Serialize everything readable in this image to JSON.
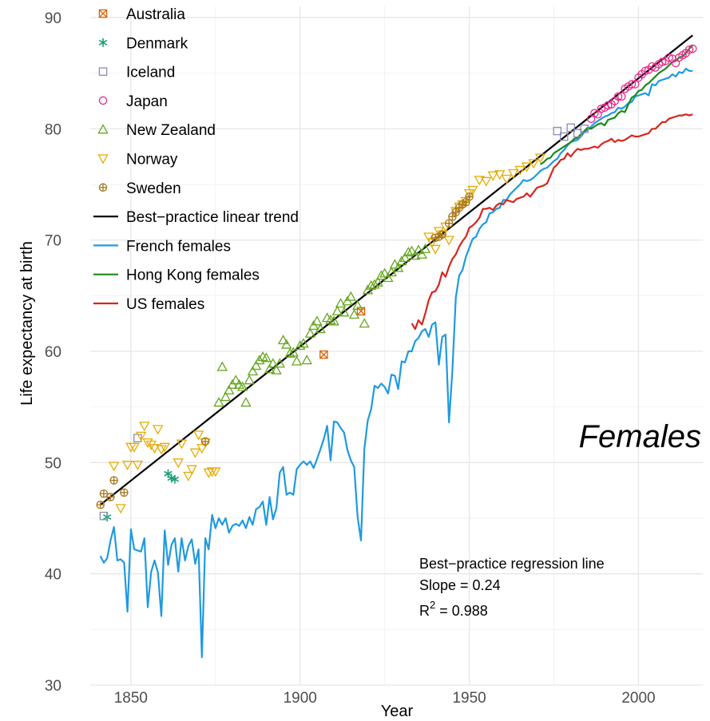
{
  "chart_data": {
    "type": "line",
    "title": "",
    "xlabel": "Year",
    "ylabel": "Life expectancy at birth",
    "xlim": [
      1838,
      2019
    ],
    "ylim": [
      30,
      91
    ],
    "xticks": [
      1850,
      1900,
      1950,
      2000
    ],
    "yticks": [
      30,
      40,
      50,
      60,
      70,
      80,
      90
    ],
    "grid": true,
    "legend_position": "top-left",
    "panel_label": "Females",
    "annotation": {
      "line1": "Best−practice regression line",
      "line2": "Slope = 0.24",
      "line3_prefix": "R",
      "line3_sup": "2",
      "line3_suffix": " = 0.988"
    },
    "legend": [
      {
        "label": "Australia",
        "kind": "marker",
        "marker": "square-x",
        "color": "#d95f02"
      },
      {
        "label": "Denmark",
        "kind": "marker",
        "marker": "asterisk",
        "color": "#1b9e77"
      },
      {
        "label": "Iceland",
        "kind": "marker",
        "marker": "square",
        "color": "#8c8cb3"
      },
      {
        "label": "Japan",
        "kind": "marker",
        "marker": "circle",
        "color": "#e7298a"
      },
      {
        "label": "New Zealand",
        "kind": "marker",
        "marker": "triangle-up",
        "color": "#66a61e"
      },
      {
        "label": "Norway",
        "kind": "marker",
        "marker": "triangle-down",
        "color": "#e6ab02"
      },
      {
        "label": "Sweden",
        "kind": "marker",
        "marker": "circle-plus",
        "color": "#a6761d"
      },
      {
        "label": "Best−practice linear trend",
        "kind": "line",
        "color": "#000000"
      },
      {
        "label": "French females",
        "kind": "line",
        "color": "#1f9ae0"
      },
      {
        "label": "Hong Kong females",
        "kind": "line",
        "color": "#1a8a1a"
      },
      {
        "label": "US females",
        "kind": "line",
        "color": "#d7261e"
      }
    ],
    "trend": {
      "x": [
        1841,
        2016
      ],
      "y": [
        46.2,
        88.4
      ]
    },
    "points": [
      {
        "series": "Australia",
        "x": [
          1907,
          1918
        ],
        "y": [
          59.7,
          63.6
        ]
      },
      {
        "series": "Denmark",
        "x": [
          1843,
          1861,
          1862,
          1863
        ],
        "y": [
          45.1,
          49.0,
          48.6,
          48.5
        ]
      },
      {
        "series": "Iceland",
        "x": [
          1842,
          1852,
          1976,
          1978,
          1980,
          1982,
          1984
        ],
        "y": [
          45.2,
          52.2,
          79.8,
          79.3,
          80.1,
          79.6,
          80.0
        ]
      },
      {
        "series": "Japan",
        "x": [
          1986,
          1987,
          1988,
          1989,
          1990,
          1991,
          1992,
          1993,
          1994,
          1995,
          1996,
          1997,
          1998,
          1999,
          2000,
          2001,
          2002,
          2003,
          2004,
          2005,
          2006,
          2007,
          2008,
          2009,
          2010,
          2011,
          2012,
          2013,
          2014,
          2015,
          2016
        ],
        "y": [
          80.9,
          81.4,
          81.3,
          81.8,
          81.9,
          82.1,
          82.2,
          82.5,
          82.9,
          82.9,
          83.6,
          83.8,
          84.0,
          84.0,
          84.6,
          84.9,
          85.2,
          85.3,
          85.6,
          85.5,
          85.8,
          86.0,
          86.1,
          86.4,
          86.3,
          85.9,
          86.4,
          86.6,
          86.8,
          87.1,
          87.2
        ]
      },
      {
        "series": "New Zealand",
        "x": [
          1876,
          1877,
          1878,
          1879,
          1880,
          1881,
          1882,
          1883,
          1884,
          1885,
          1886,
          1887,
          1888,
          1889,
          1890,
          1891,
          1892,
          1893,
          1894,
          1895,
          1896,
          1897,
          1898,
          1899,
          1900,
          1901,
          1902,
          1903,
          1904,
          1905,
          1906,
          1908,
          1909,
          1910,
          1911,
          1912,
          1913,
          1914,
          1915,
          1916,
          1917,
          1919,
          1920,
          1921,
          1922,
          1923,
          1924,
          1925,
          1926,
          1927,
          1928,
          1929,
          1930,
          1931,
          1932,
          1933,
          1934,
          1935,
          1936,
          1937
        ],
        "y": [
          55.4,
          58.6,
          55.9,
          56.5,
          57.0,
          57.4,
          57.0,
          56.8,
          55.4,
          57.4,
          58.2,
          58.7,
          59.2,
          59.5,
          59.4,
          58.4,
          58.9,
          58.3,
          58.9,
          61.0,
          60.6,
          59.8,
          59.9,
          59.1,
          60.5,
          60.7,
          59.2,
          61.6,
          62.3,
          62.7,
          62.0,
          63.0,
          62.8,
          62.7,
          63.6,
          64.3,
          63.5,
          64.5,
          64.9,
          63.3,
          64.1,
          62.5,
          65.5,
          65.9,
          66.0,
          66.2,
          66.8,
          67.0,
          66.6,
          67.1,
          67.8,
          67.5,
          68.1,
          68.4,
          68.9,
          69.0,
          68.6,
          69.1,
          68.7,
          69.2
        ]
      },
      {
        "series": "Norway",
        "x": [
          1845,
          1847,
          1849,
          1850,
          1851,
          1852,
          1853,
          1854,
          1855,
          1856,
          1857,
          1858,
          1859,
          1860,
          1864,
          1865,
          1867,
          1868,
          1869,
          1870,
          1871,
          1872,
          1873,
          1874,
          1875,
          1938,
          1939,
          1940,
          1941,
          1942,
          1943,
          1944,
          1946,
          1947,
          1948,
          1949,
          1950,
          1951,
          1953,
          1955,
          1957,
          1959,
          1961,
          1963,
          1965,
          1967,
          1969,
          1971
        ],
        "y": [
          49.7,
          45.9,
          49.8,
          51.4,
          51.4,
          49.8,
          52.4,
          53.3,
          51.8,
          51.6,
          51.3,
          53.0,
          51.2,
          51.4,
          50.0,
          51.7,
          48.8,
          49.4,
          50.9,
          52.5,
          51.3,
          51.8,
          49.1,
          49.2,
          49.2,
          70.3,
          69.8,
          69.2,
          70.8,
          70.5,
          71.2,
          70.0,
          72.6,
          73.0,
          73.2,
          73.5,
          74.2,
          74.5,
          75.4,
          75.3,
          75.8,
          75.9,
          75.5,
          76.0,
          76.3,
          76.6,
          76.9,
          77.4
        ]
      },
      {
        "series": "Sweden",
        "x": [
          1841,
          1842,
          1844,
          1845,
          1848,
          1872,
          1940,
          1941,
          1942,
          1944,
          1945,
          1946,
          1947,
          1948,
          1949,
          1950
        ],
        "y": [
          46.2,
          47.2,
          46.9,
          48.4,
          47.3,
          51.9,
          70.2,
          70.3,
          70.5,
          71.5,
          72.1,
          72.5,
          72.9,
          73.2,
          73.4,
          73.9
        ]
      }
    ],
    "series": [
      {
        "name": "French females",
        "x": [
          1841,
          1842,
          1843,
          1844,
          1845,
          1846,
          1847,
          1848,
          1849,
          1850,
          1851,
          1852,
          1853,
          1854,
          1855,
          1856,
          1857,
          1858,
          1859,
          1860,
          1861,
          1862,
          1863,
          1864,
          1865,
          1866,
          1867,
          1868,
          1869,
          1870,
          1871,
          1872,
          1873,
          1874,
          1875,
          1876,
          1877,
          1878,
          1879,
          1880,
          1881,
          1882,
          1883,
          1884,
          1885,
          1886,
          1887,
          1888,
          1889,
          1890,
          1891,
          1892,
          1893,
          1894,
          1895,
          1896,
          1897,
          1898,
          1899,
          1900,
          1901,
          1902,
          1903,
          1904,
          1905,
          1906,
          1907,
          1908,
          1909,
          1910,
          1911,
          1912,
          1913,
          1914,
          1915,
          1916,
          1917,
          1918,
          1919,
          1920,
          1921,
          1922,
          1923,
          1924,
          1925,
          1926,
          1927,
          1928,
          1929,
          1930,
          1931,
          1932,
          1933,
          1934,
          1935,
          1936,
          1937,
          1938,
          1939,
          1940,
          1941,
          1942,
          1943,
          1944,
          1945,
          1946,
          1947,
          1948,
          1949,
          1950,
          1951,
          1952,
          1953,
          1954,
          1955,
          1956,
          1957,
          1958,
          1959,
          1960,
          1961,
          1962,
          1963,
          1964,
          1965,
          1966,
          1967,
          1968,
          1969,
          1970,
          1971,
          1972,
          1973,
          1974,
          1975,
          1976,
          1977,
          1978,
          1979,
          1980,
          1981,
          1982,
          1983,
          1984,
          1985,
          1986,
          1987,
          1988,
          1989,
          1990,
          1991,
          1992,
          1993,
          1994,
          1995,
          1996,
          1997,
          1998,
          1999,
          2000,
          2001,
          2002,
          2003,
          2004,
          2005,
          2006,
          2007,
          2008,
          2009,
          2010,
          2011,
          2012,
          2013,
          2014,
          2015,
          2016
        ],
        "y": [
          41.6,
          41.0,
          41.4,
          43.0,
          44.2,
          41.2,
          41.3,
          41.0,
          36.6,
          44.0,
          42.2,
          42.1,
          42.0,
          43.2,
          37.0,
          40.2,
          41.2,
          40.1,
          36.2,
          43.9,
          40.8,
          42.6,
          43.2,
          40.2,
          43.2,
          41.2,
          42.5,
          43.1,
          40.9,
          42.2,
          32.5,
          43.2,
          42.2,
          45.3,
          44.1,
          45.0,
          44.4,
          45.0,
          43.7,
          44.3,
          44.5,
          44.3,
          44.8,
          44.1,
          45.1,
          44.4,
          45.8,
          46.0,
          46.5,
          44.4,
          46.9,
          44.9,
          45.9,
          49.1,
          49.6,
          47.1,
          47.3,
          47.1,
          49.4,
          49.8,
          50.1,
          49.8,
          50.1,
          49.5,
          50.3,
          51.2,
          52.1,
          53.3,
          50.2,
          53.7,
          53.6,
          53.1,
          52.7,
          51.1,
          50.2,
          49.6,
          45.1,
          43.0,
          51.2,
          53.8,
          54.8,
          56.9,
          56.7,
          57.1,
          56.8,
          56.2,
          57.9,
          57.8,
          56.6,
          59.1,
          59.0,
          60.0,
          60.0,
          60.9,
          61.2,
          61.8,
          62.0,
          61.3,
          62.4,
          62.6,
          58.8,
          61.3,
          61.5,
          53.6,
          58.2,
          64.8,
          66.8,
          67.3,
          68.5,
          69.3,
          70.1,
          70.3,
          71.0,
          71.4,
          71.6,
          72.4,
          72.5,
          72.8,
          72.9,
          73.6,
          73.6,
          74.1,
          74.4,
          74.7,
          75.0,
          75.4,
          75.3,
          75.4,
          75.6,
          75.9,
          76.2,
          76.4,
          76.5,
          76.8,
          77.1,
          77.3,
          77.8,
          78.1,
          78.5,
          78.8,
          78.9,
          79.0,
          79.3,
          79.7,
          79.9,
          80.2,
          80.5,
          80.7,
          80.9,
          81.1,
          81.2,
          81.4,
          81.5,
          81.9,
          81.8,
          82.0,
          82.3,
          82.4,
          82.9,
          83.0,
          83.1,
          83.2,
          83.0,
          84.0,
          83.9,
          84.3,
          84.4,
          84.5,
          84.6,
          84.9,
          84.7,
          85.1,
          85.0,
          85.4,
          85.2,
          85.2
        ],
        "color": "#1f9ae0"
      },
      {
        "name": "Hong Kong females",
        "x": [
          1971,
          1972,
          1973,
          1974,
          1975,
          1976,
          1977,
          1978,
          1979,
          1980,
          1981,
          1982,
          1983,
          1984,
          1985,
          1986,
          1987,
          1988,
          1989,
          1990,
          1991,
          1992,
          1993,
          1994,
          1995,
          1996,
          1997,
          1998,
          1999,
          2000,
          2001,
          2002,
          2003,
          2004,
          2005,
          2006,
          2007,
          2008,
          2009,
          2010,
          2011,
          2012,
          2013,
          2014,
          2015,
          2016
        ],
        "y": [
          76.8,
          77.0,
          77.3,
          77.4,
          77.8,
          78.0,
          78.2,
          78.4,
          78.6,
          78.8,
          79.1,
          79.2,
          79.5,
          79.8,
          80.1,
          80.0,
          80.2,
          80.4,
          80.5,
          80.3,
          80.8,
          80.9,
          81.0,
          81.4,
          81.6,
          81.5,
          82.2,
          82.8,
          83.0,
          83.4,
          83.5,
          83.9,
          84.1,
          84.4,
          84.7,
          85.0,
          85.2,
          85.4,
          85.7,
          86.0,
          86.1,
          86.4,
          86.5,
          86.8,
          87.2,
          87.5
        ],
        "color": "#1a8a1a"
      },
      {
        "name": "US females",
        "x": [
          1933,
          1934,
          1935,
          1936,
          1937,
          1938,
          1939,
          1940,
          1941,
          1942,
          1943,
          1944,
          1945,
          1946,
          1947,
          1948,
          1949,
          1950,
          1951,
          1952,
          1953,
          1954,
          1955,
          1956,
          1957,
          1958,
          1959,
          1960,
          1961,
          1962,
          1963,
          1964,
          1965,
          1966,
          1967,
          1968,
          1969,
          1970,
          1971,
          1972,
          1973,
          1974,
          1975,
          1976,
          1977,
          1978,
          1979,
          1980,
          1981,
          1982,
          1983,
          1984,
          1985,
          1986,
          1987,
          1988,
          1989,
          1990,
          1991,
          1992,
          1993,
          1994,
          1995,
          1996,
          1997,
          1998,
          1999,
          2000,
          2001,
          2002,
          2003,
          2004,
          2005,
          2006,
          2007,
          2008,
          2009,
          2010,
          2011,
          2012,
          2013,
          2014,
          2015,
          2016
        ],
        "y": [
          62.5,
          62.0,
          62.8,
          62.4,
          63.4,
          64.6,
          65.3,
          65.4,
          66.0,
          67.1,
          66.7,
          67.6,
          68.3,
          68.7,
          69.4,
          69.9,
          70.3,
          71.1,
          71.3,
          71.6,
          72.0,
          72.8,
          72.8,
          72.9,
          72.7,
          73.1,
          73.3,
          73.2,
          73.6,
          73.5,
          73.4,
          73.7,
          73.8,
          73.9,
          74.2,
          73.9,
          74.3,
          74.7,
          74.8,
          74.9,
          75.1,
          75.8,
          76.5,
          76.8,
          77.2,
          77.3,
          77.8,
          77.5,
          77.9,
          78.2,
          78.1,
          78.2,
          78.2,
          78.3,
          78.4,
          78.3,
          78.6,
          78.8,
          78.9,
          79.1,
          78.8,
          79.0,
          78.9,
          79.0,
          79.2,
          79.4,
          79.3,
          79.3,
          79.4,
          79.5,
          79.6,
          80.0,
          80.0,
          80.3,
          80.6,
          80.6,
          80.9,
          81.0,
          81.1,
          81.2,
          81.2,
          81.3,
          81.2,
          81.3
        ],
        "color": "#d7261e"
      }
    ]
  }
}
